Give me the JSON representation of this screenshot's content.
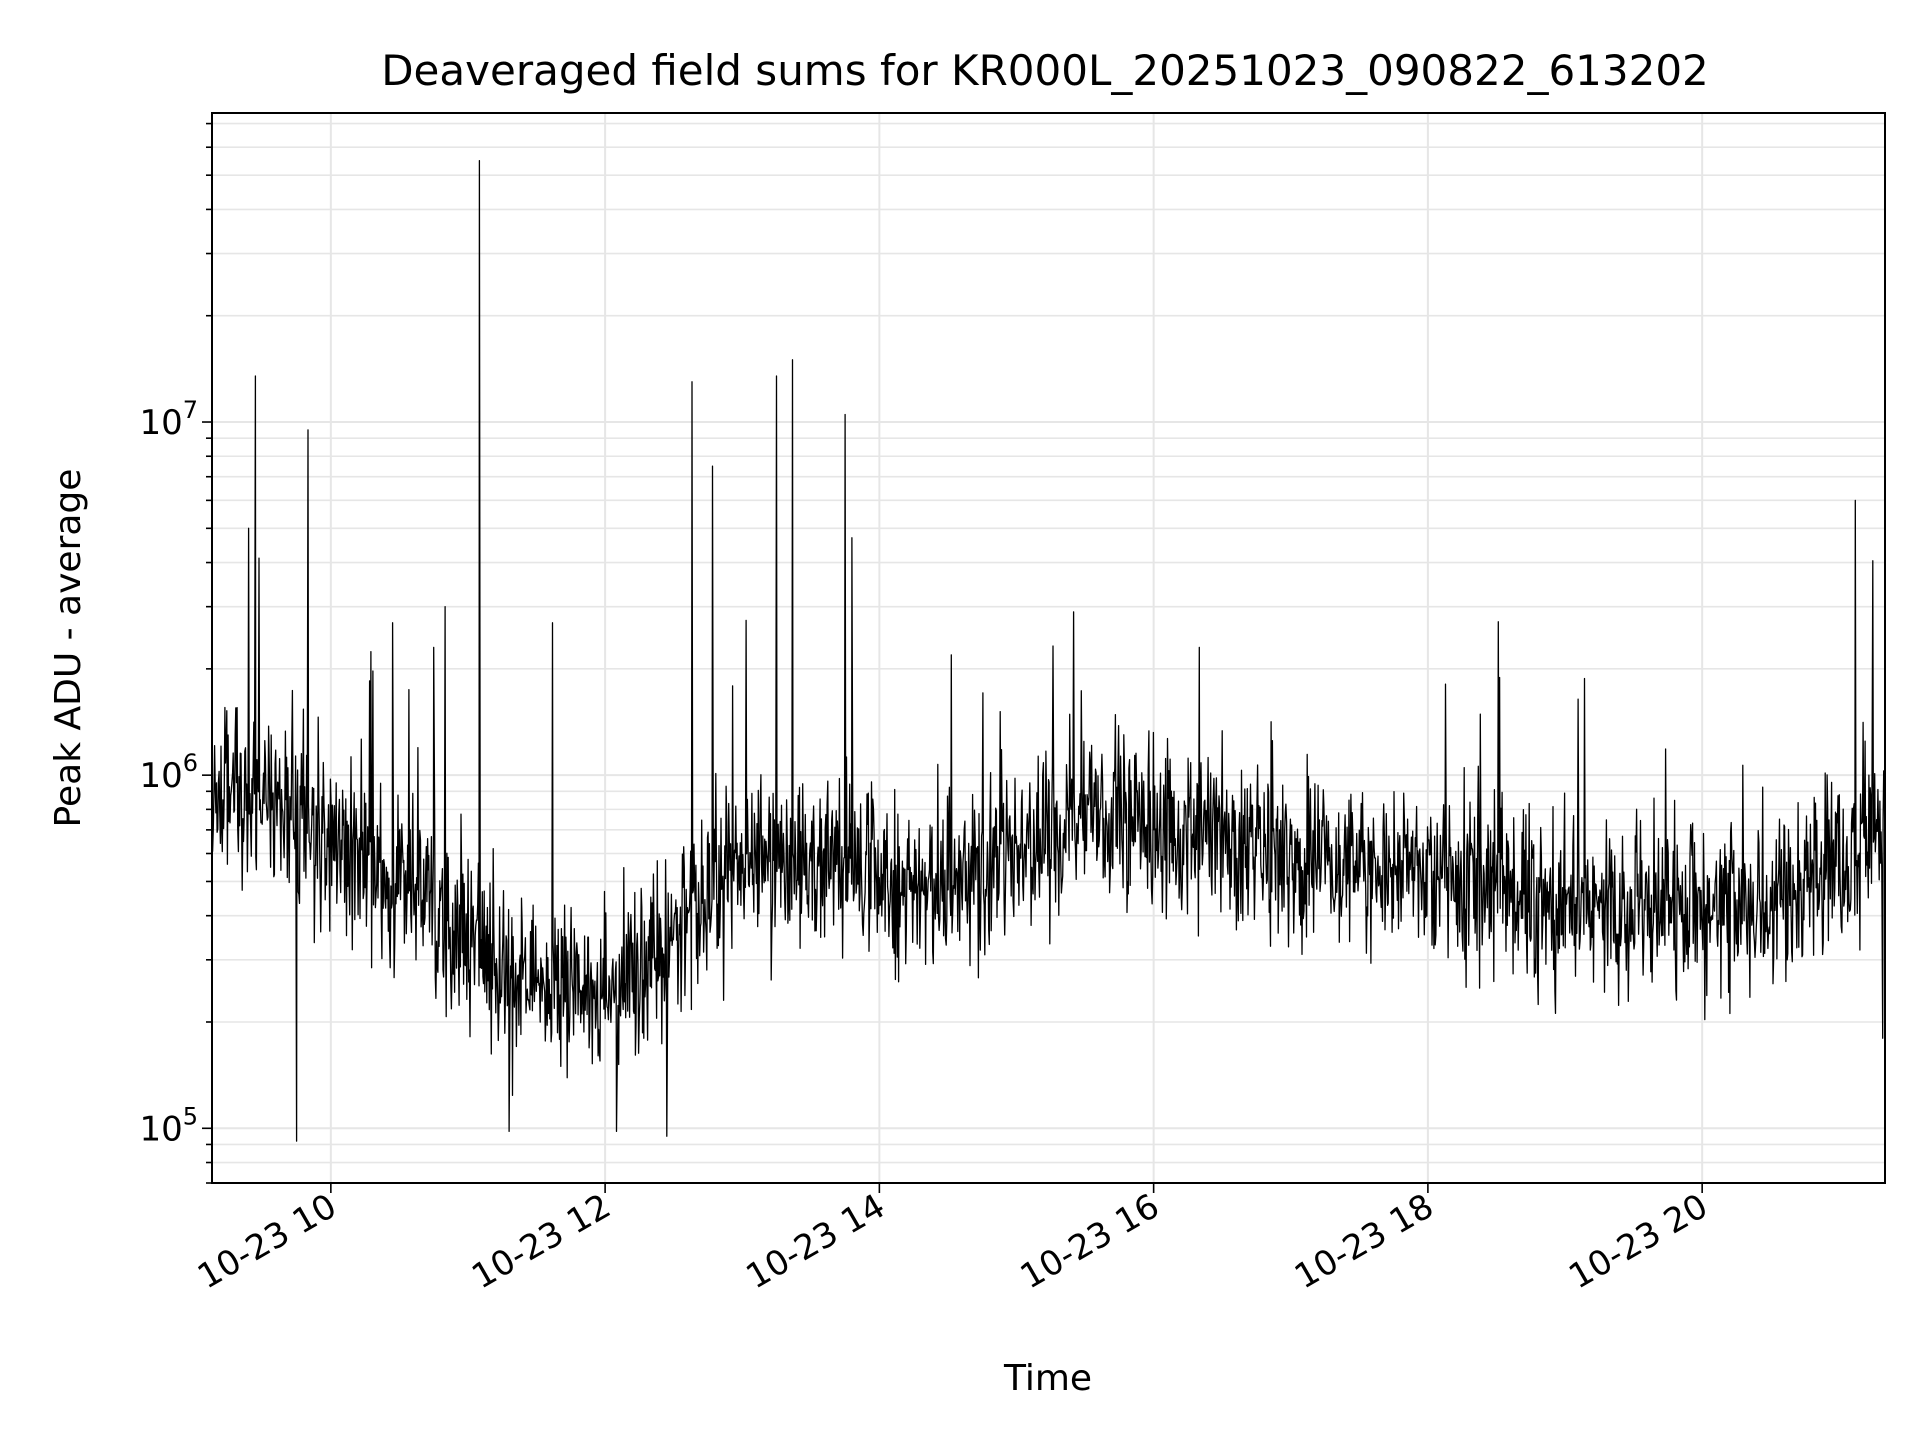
{
  "chart_data": {
    "type": "line",
    "title": "Deaveraged field sums for KR000L_20251023_090822_613202",
    "xlabel": "Time",
    "ylabel": "Peak ADU - average",
    "yscale": "log",
    "grid": true,
    "line_color": "#000000",
    "grid_color": "#e6e6e6",
    "xlim": [
      "2025-10-23 09:08",
      "2025-10-23 21:20"
    ],
    "ylim": [
      70000,
      75000000
    ],
    "x_ticks": [
      {
        "value": "2025-10-23 10:00",
        "label": "10-23 10"
      },
      {
        "value": "2025-10-23 12:00",
        "label": "10-23 12"
      },
      {
        "value": "2025-10-23 14:00",
        "label": "10-23 14"
      },
      {
        "value": "2025-10-23 16:00",
        "label": "10-23 16"
      },
      {
        "value": "2025-10-23 18:00",
        "label": "10-23 18"
      },
      {
        "value": "2025-10-23 20:00",
        "label": "10-23 20"
      }
    ],
    "y_ticks": [
      {
        "value": 100000,
        "base": "10",
        "exp": "5"
      },
      {
        "value": 1000000,
        "base": "10",
        "exp": "6"
      },
      {
        "value": 10000000,
        "base": "10",
        "exp": "7"
      }
    ],
    "baseline": [
      {
        "t": "2025-10-23 09:08",
        "y": 850000
      },
      {
        "t": "2025-10-23 09:30",
        "y": 900000
      },
      {
        "t": "2025-10-23 10:00",
        "y": 650000
      },
      {
        "t": "2025-10-23 10:30",
        "y": 500000
      },
      {
        "t": "2025-10-23 11:00",
        "y": 330000
      },
      {
        "t": "2025-10-23 11:30",
        "y": 240000
      },
      {
        "t": "2025-10-23 12:00",
        "y": 250000
      },
      {
        "t": "2025-10-23 12:30",
        "y": 330000
      },
      {
        "t": "2025-10-23 13:00",
        "y": 550000
      },
      {
        "t": "2025-10-23 13:30",
        "y": 600000
      },
      {
        "t": "2025-10-23 14:00",
        "y": 480000
      },
      {
        "t": "2025-10-23 14:30",
        "y": 500000
      },
      {
        "t": "2025-10-23 15:00",
        "y": 580000
      },
      {
        "t": "2025-10-23 15:30",
        "y": 800000
      },
      {
        "t": "2025-10-23 16:00",
        "y": 720000
      },
      {
        "t": "2025-10-23 16:30",
        "y": 700000
      },
      {
        "t": "2025-10-23 17:00",
        "y": 560000
      },
      {
        "t": "2025-10-23 17:30",
        "y": 540000
      },
      {
        "t": "2025-10-23 18:00",
        "y": 520000
      },
      {
        "t": "2025-10-23 18:30",
        "y": 480000
      },
      {
        "t": "2025-10-23 19:00",
        "y": 440000
      },
      {
        "t": "2025-10-23 19:30",
        "y": 410000
      },
      {
        "t": "2025-10-23 20:00",
        "y": 420000
      },
      {
        "t": "2025-10-23 20:30",
        "y": 430000
      },
      {
        "t": "2025-10-23 21:00",
        "y": 560000
      },
      {
        "t": "2025-10-23 21:20",
        "y": 700000
      }
    ],
    "spikes": [
      {
        "t": "2025-10-23 09:24",
        "y": 5000000
      },
      {
        "t": "2025-10-23 09:27",
        "y": 13500000
      },
      {
        "t": "2025-10-23 09:50",
        "y": 9500000
      },
      {
        "t": "2025-10-23 10:27",
        "y": 2700000
      },
      {
        "t": "2025-10-23 10:45",
        "y": 2300000
      },
      {
        "t": "2025-10-23 10:50",
        "y": 3000000
      },
      {
        "t": "2025-10-23 11:05",
        "y": 55000000
      },
      {
        "t": "2025-10-23 11:37",
        "y": 2700000
      },
      {
        "t": "2025-10-23 12:38",
        "y": 13000000
      },
      {
        "t": "2025-10-23 12:47",
        "y": 7500000
      },
      {
        "t": "2025-10-23 13:15",
        "y": 13500000
      },
      {
        "t": "2025-10-23 13:22",
        "y": 15000000
      },
      {
        "t": "2025-10-23 13:45",
        "y": 10500000
      },
      {
        "t": "2025-10-23 13:48",
        "y": 4700000
      },
      {
        "t": "2025-10-23 15:25",
        "y": 2900000
      },
      {
        "t": "2025-10-23 16:20",
        "y": 2300000
      },
      {
        "t": "2025-10-23 21:07",
        "y": 6000000
      }
    ],
    "dips": [
      {
        "t": "2025-10-23 09:45",
        "y": 92000
      },
      {
        "t": "2025-10-23 11:18",
        "y": 98000
      },
      {
        "t": "2025-10-23 12:05",
        "y": 98000
      },
      {
        "t": "2025-10-23 12:27",
        "y": 95000
      },
      {
        "t": "2025-10-23 21:19",
        "y": 180000
      }
    ]
  }
}
